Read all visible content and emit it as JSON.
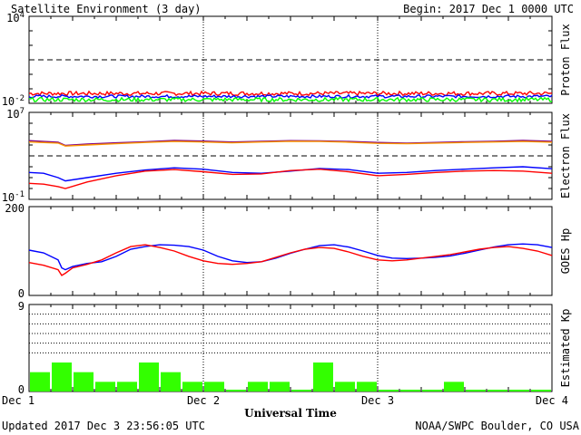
{
  "header": {
    "title": "Satellite Environment (3 day)",
    "begin": "Begin:  2017 Dec 1 0000 UTC"
  },
  "footer": {
    "updated": "Updated 2017 Dec  3 23:56:05 UTC",
    "credit": "NOAA/SWPC Boulder, CO USA"
  },
  "x_axis": {
    "label": "Universal Time",
    "ticks": [
      "Dec 1",
      "Dec 2",
      "Dec 3",
      "Dec 4"
    ]
  },
  "colors": {
    "red": "#ff0000",
    "blue": "#0000ff",
    "green": "#00ff00",
    "orange": "#ff9900",
    "purple": "#800080",
    "kp_bar": "#33ff00"
  },
  "chart_data": [
    {
      "type": "line",
      "name": "proton-flux",
      "ylabel": "Proton Flux",
      "yscale": "log",
      "ylim": [
        0.01,
        10000
      ],
      "ytick_labels": [
        {
          "base": "10",
          "exp": "4"
        },
        {
          "base": "10",
          "exp": "-2"
        }
      ],
      "threshold": 10,
      "xlim": [
        0,
        72
      ],
      "series": [
        {
          "color": "#ff0000",
          "level": 0.048,
          "noise": 0.14
        },
        {
          "color": "#0000ff",
          "level": 0.03,
          "noise": 0.1
        },
        {
          "color": "#00ff00",
          "level": 0.018,
          "noise": 0.14
        }
      ]
    },
    {
      "type": "line",
      "name": "electron-flux",
      "ylabel": "Electron Flux",
      "yscale": "log",
      "ylim": [
        0.1,
        10000000
      ],
      "ytick_labels": [
        {
          "base": "10",
          "exp": "7"
        },
        {
          "base": "10",
          "exp": "-1"
        }
      ],
      "threshold": 1000,
      "xlim": [
        0,
        72
      ],
      "series": [
        {
          "color": "#800080",
          "x": [
            0,
            4,
            5,
            8,
            12,
            16,
            20,
            24,
            28,
            32,
            36,
            40,
            44,
            48,
            52,
            56,
            60,
            64,
            68,
            72
          ],
          "y": [
            25000,
            18000,
            9000,
            12000,
            16000,
            20000,
            26000,
            23000,
            19000,
            22000,
            25000,
            24000,
            21000,
            17000,
            15000,
            17000,
            20000,
            22000,
            26000,
            22000
          ]
        },
        {
          "color": "#ff9900",
          "x": [
            0,
            4,
            5,
            8,
            12,
            16,
            20,
            24,
            28,
            32,
            36,
            40,
            44,
            48,
            52,
            56,
            60,
            64,
            68,
            72
          ],
          "y": [
            19000,
            15000,
            8000,
            10000,
            13000,
            17000,
            21000,
            19000,
            16000,
            19000,
            22000,
            21000,
            18000,
            14000,
            13000,
            15000,
            17000,
            19000,
            21000,
            18000
          ]
        },
        {
          "color": "#0000ff",
          "x": [
            0,
            2,
            4,
            5,
            8,
            12,
            16,
            20,
            24,
            28,
            32,
            36,
            40,
            44,
            48,
            52,
            56,
            60,
            64,
            68,
            72
          ],
          "y": [
            30,
            25,
            10,
            5,
            10,
            25,
            50,
            80,
            60,
            30,
            25,
            40,
            70,
            55,
            25,
            30,
            45,
            60,
            80,
            100,
            65
          ]
        },
        {
          "color": "#ff0000",
          "x": [
            0,
            2,
            4,
            5,
            8,
            12,
            16,
            20,
            24,
            28,
            32,
            36,
            40,
            44,
            48,
            52,
            56,
            60,
            64,
            68,
            72
          ],
          "y": [
            3,
            2.5,
            1.5,
            1,
            4,
            15,
            40,
            55,
            35,
            20,
            22,
            45,
            60,
            35,
            15,
            20,
            30,
            40,
            45,
            40,
            25
          ]
        }
      ]
    },
    {
      "type": "line",
      "name": "goes-hp",
      "ylabel": "GOES Hp",
      "ylim": [
        0,
        200
      ],
      "ytick_labels": [
        "200",
        "0"
      ],
      "xlim": [
        0,
        72
      ],
      "series": [
        {
          "color": "#0000ff",
          "x": [
            0,
            2,
            4,
            4.5,
            5,
            6,
            8,
            10,
            12,
            14,
            16,
            18,
            20,
            22,
            24,
            26,
            28,
            30,
            32,
            34,
            36,
            38,
            40,
            42,
            44,
            46,
            48,
            50,
            52,
            54,
            56,
            58,
            60,
            62,
            64,
            66,
            68,
            70,
            72
          ],
          "y": [
            102,
            96,
            80,
            62,
            58,
            65,
            72,
            76,
            88,
            104,
            110,
            114,
            113,
            110,
            102,
            88,
            78,
            74,
            76,
            84,
            95,
            104,
            112,
            114,
            109,
            100,
            90,
            84,
            83,
            84,
            86,
            89,
            95,
            102,
            109,
            114,
            116,
            114,
            108
          ]
        },
        {
          "color": "#ff0000",
          "x": [
            0,
            2,
            4,
            4.5,
            5,
            6,
            8,
            10,
            12,
            14,
            16,
            18,
            20,
            22,
            24,
            26,
            28,
            30,
            32,
            34,
            36,
            38,
            40,
            42,
            44,
            46,
            48,
            50,
            52,
            54,
            56,
            58,
            60,
            62,
            64,
            66,
            68,
            70,
            72
          ],
          "y": [
            74,
            68,
            58,
            45,
            50,
            62,
            70,
            80,
            96,
            110,
            114,
            108,
            100,
            88,
            78,
            72,
            70,
            72,
            76,
            86,
            96,
            104,
            108,
            106,
            98,
            88,
            80,
            78,
            80,
            84,
            88,
            92,
            98,
            104,
            108,
            110,
            106,
            100,
            90
          ]
        }
      ]
    },
    {
      "type": "bar",
      "name": "estimated-kp",
      "ylabel": "Estimated Kp",
      "ylim": [
        0,
        9
      ],
      "ytick_labels": [
        "9",
        "0"
      ],
      "gridlines": [
        4,
        5,
        6,
        7,
        8
      ],
      "bar_hours": 3,
      "values": [
        2,
        3,
        2,
        1,
        1,
        3,
        2,
        1,
        1,
        0,
        1,
        1,
        0,
        3,
        1,
        1,
        0,
        0,
        0,
        1,
        0,
        0,
        0,
        0
      ]
    }
  ]
}
